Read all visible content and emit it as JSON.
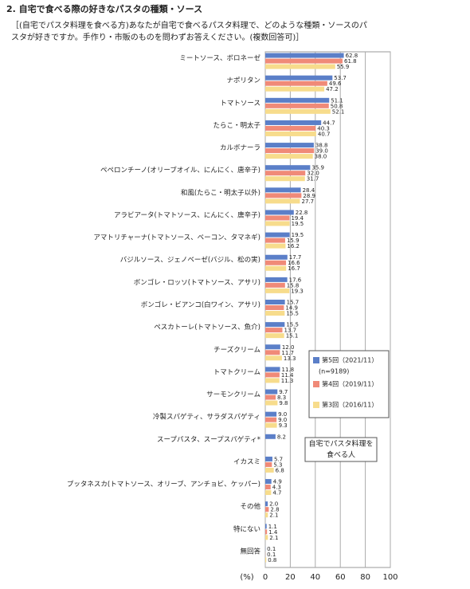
{
  "chart_data": {
    "type": "hbar",
    "title": "2. 自宅で食べる際の好きなパスタの種類・ソース",
    "subtitle_lines": [
      "［(自宅でパスタ料理を食べる方)あなたが自宅で食べるパスタ料理で、どのような種類・ソースのパ",
      "スタが好きですか。手作り・市販のものを問わずお答えください。(複数回答可)］"
    ],
    "categories": [
      "ミートソース、ボロネーゼ",
      "ナポリタン",
      "トマトソース",
      "たらこ・明太子",
      "カルボナーラ",
      "ペペロンチーノ(オリーブオイル、にんにく、唐辛子)",
      "和風(たらこ・明太子以外)",
      "アラビアータ(トマトソース、にんにく、唐辛子)",
      "アマトリチャーナ(トマトソース、ベーコン、タマネギ)",
      "バジルソース、ジェノベーゼ(バジル、松の実)",
      "ボンゴレ・ロッソ(トマトソース、アサリ)",
      "ボンゴレ・ビアンコ(白ワイン、アサリ)",
      "ペスカトーレ(トマトソース、魚介)",
      "チーズクリーム",
      "トマトクリーム",
      "サーモンクリーム",
      "冷製スパゲティ、サラダスパゲティ",
      "スープパスタ、スープスパゲティ*",
      "イカスミ",
      "プッタネスカ(トマトソース、オリーブ、アンチョビ、ケッパー)",
      "その他",
      "特にない",
      "無回答"
    ],
    "series": [
      {
        "name": "第5回（2021/11）",
        "color": "#5b7fc8",
        "values": [
          62.8,
          53.7,
          51.1,
          44.7,
          38.8,
          35.9,
          28.4,
          22.8,
          19.5,
          17.7,
          17.6,
          15.7,
          15.5,
          12.0,
          11.8,
          9.7,
          9.0,
          8.2,
          5.7,
          4.9,
          2.0,
          1.1,
          0.1
        ],
        "value_labels": [
          "62.8",
          "53.7",
          "51.1",
          "44.7",
          "38.8",
          "35.9",
          "28.4",
          "22.8",
          "19.5",
          "17.7",
          "17.6",
          "15.7",
          "15.5",
          "12.0",
          "11.8",
          "9.7",
          "9.0",
          "8.2",
          "5.7",
          "4.9",
          "2.0",
          "1.1",
          "0.1"
        ]
      },
      {
        "name": "第4回（2019/11）",
        "color": "#f08a78",
        "values": [
          61.8,
          49.6,
          50.8,
          40.3,
          39.0,
          32.0,
          28.9,
          19.4,
          15.9,
          16.6,
          15.8,
          14.9,
          13.7,
          11.7,
          11.4,
          8.3,
          9.0,
          null,
          5.3,
          4.3,
          2.8,
          1.4,
          0.1
        ],
        "value_labels": [
          "61.8",
          "49.6",
          "50.8",
          "40.3",
          "39.0",
          "32.0",
          "28.9",
          "19.4",
          "15.9",
          "16.6",
          "15.8",
          "14.9",
          "13.7",
          "11.7",
          "11.4",
          "8.3",
          "9.0",
          null,
          "5.3",
          "4.3",
          "2.8",
          "1.4",
          "0.1"
        ]
      },
      {
        "name": "第3回（2016/11）",
        "color": "#f7dc8c",
        "values": [
          55.9,
          47.2,
          52.1,
          40.7,
          38.0,
          31.7,
          27.7,
          19.5,
          16.2,
          16.7,
          19.3,
          15.5,
          15.1,
          13.3,
          11.3,
          9.8,
          9.3,
          null,
          6.8,
          4.7,
          2.1,
          2.1,
          0.8
        ],
        "value_labels": [
          "55.9",
          "47.2",
          "52.1",
          "40.7",
          "38.0",
          "31.7",
          "27.7",
          "19.5",
          "16.2",
          "16.7",
          "19.3",
          "15.5",
          "15.1",
          "13.3",
          "11.3",
          "9.8",
          "9.3",
          null,
          "6.8",
          "4.7",
          "2.1",
          "2.1",
          "0.8"
        ]
      }
    ],
    "legend_note": "(n=9189)",
    "annotation": [
      "自宅でパスタ料理を",
      "食べる人"
    ],
    "xlabel": "(%)",
    "xlim": [
      0,
      100
    ],
    "xticks": [
      0,
      20,
      40,
      60,
      80,
      100
    ],
    "grid": true
  }
}
